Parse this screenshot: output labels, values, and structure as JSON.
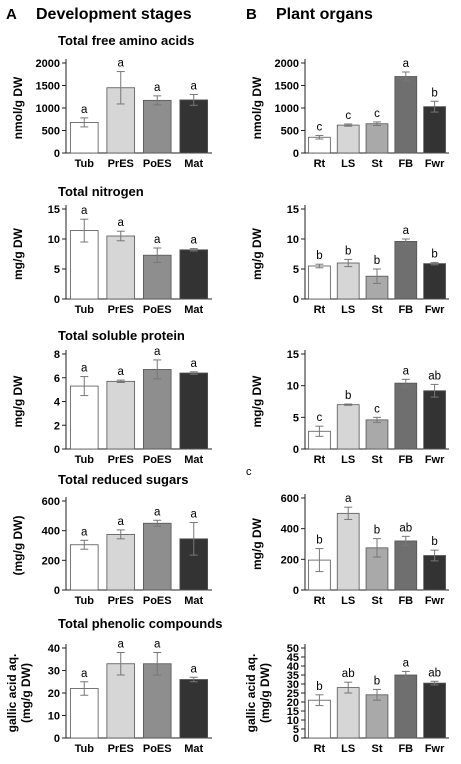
{
  "panels": {
    "A": {
      "letter": "A",
      "title": "Development stages"
    },
    "B": {
      "letter": "B",
      "title": "Plant organs"
    },
    "C": {
      "letter": "c"
    }
  },
  "colors": {
    "Tub": "#ffffff",
    "PrES": "#d6d6d6",
    "PoES": "#8e8e8e",
    "Mat": "#333333",
    "Rt": "#ffffff",
    "LS": "#d6d6d6",
    "St": "#a9a9a9",
    "FB": "#6f6f6f",
    "Fwr": "#333333"
  },
  "chart_data": [
    {
      "id": "A1",
      "type": "bar",
      "title": "Total free amino acids",
      "ylabel": "nmol/g DW",
      "categories": [
        "Tub",
        "PrES",
        "PoES",
        "Mat"
      ],
      "values": [
        680,
        1450,
        1170,
        1180
      ],
      "errors": [
        100,
        360,
        100,
        120
      ],
      "letters": [
        "a",
        "a",
        "a",
        "a"
      ],
      "ylim": [
        0,
        2000
      ],
      "yticks": [
        0,
        500,
        1000,
        1500,
        2000
      ]
    },
    {
      "id": "B1",
      "type": "bar",
      "title": "",
      "ylabel": "nmol/g DW",
      "categories": [
        "Rt",
        "LS",
        "St",
        "FB",
        "Fwr"
      ],
      "values": [
        350,
        620,
        650,
        1700,
        1030
      ],
      "errors": [
        40,
        25,
        40,
        100,
        120
      ],
      "letters": [
        "c",
        "c",
        "c",
        "a",
        "b"
      ],
      "ylim": [
        0,
        2000
      ],
      "yticks": [
        0,
        500,
        1000,
        1500,
        2000
      ]
    },
    {
      "id": "A2",
      "type": "bar",
      "title": "Total nitrogen",
      "ylabel": "mg/g DW",
      "categories": [
        "Tub",
        "PrES",
        "PoES",
        "Mat"
      ],
      "values": [
        11.4,
        10.5,
        7.3,
        8.2
      ],
      "errors": [
        1.9,
        0.8,
        1.2,
        0.2
      ],
      "letters": [
        "a",
        "a",
        "a",
        "a"
      ],
      "ylim": [
        0,
        15
      ],
      "yticks": [
        0,
        5,
        10,
        15
      ]
    },
    {
      "id": "B2",
      "type": "bar",
      "title": "",
      "ylabel": "mg/g DW",
      "categories": [
        "Rt",
        "LS",
        "St",
        "FB",
        "Fwr"
      ],
      "values": [
        5.5,
        6.0,
        3.8,
        9.6,
        5.9
      ],
      "errors": [
        0.3,
        0.6,
        1.2,
        0.4,
        0.2
      ],
      "letters": [
        "b",
        "b",
        "b",
        "a",
        "b"
      ],
      "ylim": [
        0,
        15
      ],
      "yticks": [
        0,
        5,
        10,
        15
      ]
    },
    {
      "id": "A3",
      "type": "bar",
      "title": "Total soluble protein",
      "ylabel": "mg/g DW",
      "categories": [
        "Tub",
        "PrES",
        "PoES",
        "Mat"
      ],
      "values": [
        5.3,
        5.7,
        6.7,
        6.4
      ],
      "errors": [
        0.8,
        0.1,
        0.8,
        0.1
      ],
      "letters": [
        "a",
        "a",
        "a",
        "a"
      ],
      "ylim": [
        0,
        8
      ],
      "yticks": [
        0,
        2,
        4,
        6,
        8
      ]
    },
    {
      "id": "B3",
      "type": "bar",
      "title": "",
      "ylabel": "mg/g DW",
      "categories": [
        "Rt",
        "LS",
        "St",
        "FB",
        "Fwr"
      ],
      "values": [
        2.8,
        7.0,
        4.6,
        10.4,
        9.2
      ],
      "errors": [
        0.8,
        0.1,
        0.4,
        0.6,
        1.0
      ],
      "letters": [
        "c",
        "b",
        "c",
        "a",
        "ab"
      ],
      "ylim": [
        0,
        15
      ],
      "yticks": [
        0,
        5,
        10,
        15
      ]
    },
    {
      "id": "A4",
      "type": "bar",
      "title": "Total reduced sugars",
      "ylabel": "(mg/g DW)",
      "categories": [
        "Tub",
        "PrES",
        "PoES",
        "Mat"
      ],
      "values": [
        305,
        375,
        450,
        345
      ],
      "errors": [
        30,
        30,
        20,
        110
      ],
      "letters": [
        "a",
        "a",
        "a",
        "a"
      ],
      "ylim": [
        0,
        600
      ],
      "yticks": [
        0,
        200,
        400,
        600
      ]
    },
    {
      "id": "B4",
      "type": "bar",
      "title": "",
      "ylabel": "mg/g DW",
      "categories": [
        "Rt",
        "LS",
        "St",
        "FB",
        "Fwr"
      ],
      "values": [
        195,
        500,
        275,
        320,
        225
      ],
      "errors": [
        75,
        40,
        60,
        30,
        35
      ],
      "letters": [
        "b",
        "a",
        "b",
        "ab",
        "b"
      ],
      "ylim": [
        0,
        600
      ],
      "yticks": [
        0,
        200,
        400,
        600
      ]
    },
    {
      "id": "A5",
      "type": "bar",
      "title": "Total phenolic compounds",
      "ylabel": "gallic acid aq.",
      "ylabel2": "(mg/g DW)",
      "categories": [
        "Tub",
        "PrES",
        "PoES",
        "Mat"
      ],
      "values": [
        22,
        33,
        33,
        26
      ],
      "errors": [
        3,
        5,
        5,
        1
      ],
      "letters": [
        "a",
        "a",
        "a",
        "a"
      ],
      "ylim": [
        0,
        40
      ],
      "yticks": [
        0,
        10,
        20,
        30,
        40
      ]
    },
    {
      "id": "B5",
      "type": "bar",
      "title": "",
      "ylabel": "gallic acid aq.",
      "ylabel2": "(mg/g DW)",
      "categories": [
        "Rt",
        "LS",
        "St",
        "FB",
        "Fwr"
      ],
      "values": [
        21,
        28,
        24,
        35,
        30.5
      ],
      "errors": [
        3,
        3,
        3,
        2,
        1
      ],
      "letters": [
        "b",
        "ab",
        "b",
        "a",
        "ab"
      ],
      "ylim": [
        0,
        50
      ],
      "yticks": [
        0,
        5,
        10,
        15,
        20,
        25,
        30,
        35,
        40,
        45,
        50
      ]
    }
  ]
}
